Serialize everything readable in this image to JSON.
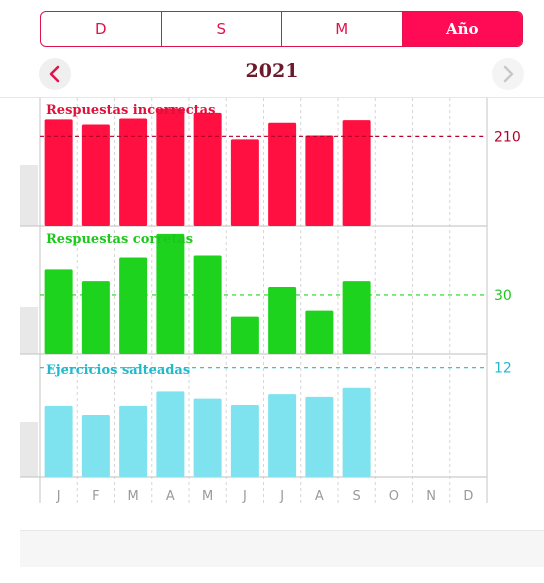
{
  "segments": {
    "items": [
      "D",
      "S",
      "M",
      "Año"
    ],
    "active": 3
  },
  "year_label": "2021",
  "colors": {
    "accent": "#ff0a54",
    "incorrect": "#ff1040",
    "incorrect_text": "#e0103a",
    "incorrect_avg": "#b3002a",
    "correct": "#1ed31e",
    "correct_text": "#1dc71d",
    "skipped": "#7ee3ef",
    "skipped_text": "#22b9cc"
  },
  "chart_data": [
    {
      "type": "bar",
      "title": "Respuestas incorrectas",
      "categories": [
        "J",
        "F",
        "M",
        "A",
        "M",
        "J",
        "J",
        "A",
        "S",
        "O",
        "N",
        "D"
      ],
      "values": [
        250,
        238,
        252,
        275,
        265,
        203,
        242,
        212,
        248,
        null,
        null,
        null
      ],
      "average": 210,
      "average_label": "210",
      "ylim": [
        0,
        300
      ]
    },
    {
      "type": "bar",
      "title": "Respuestas corretas",
      "categories": [
        "J",
        "F",
        "M",
        "A",
        "M",
        "J",
        "J",
        "A",
        "S",
        "O",
        "N",
        "D"
      ],
      "values": [
        43,
        37,
        49,
        61,
        50,
        19,
        34,
        22,
        37,
        null,
        null,
        null
      ],
      "average": 30,
      "average_label": "30",
      "ylim": [
        0,
        65
      ]
    },
    {
      "type": "bar",
      "title": "Ejercicios salteadas",
      "categories": [
        "J",
        "F",
        "M",
        "A",
        "M",
        "J",
        "J",
        "A",
        "S",
        "O",
        "N",
        "D"
      ],
      "values": [
        7.8,
        6.8,
        7.8,
        9.4,
        8.6,
        7.9,
        9.1,
        8.8,
        9.8,
        null,
        null,
        null
      ],
      "average": 12,
      "average_label": "12",
      "ylim": [
        0,
        13.5
      ]
    }
  ]
}
